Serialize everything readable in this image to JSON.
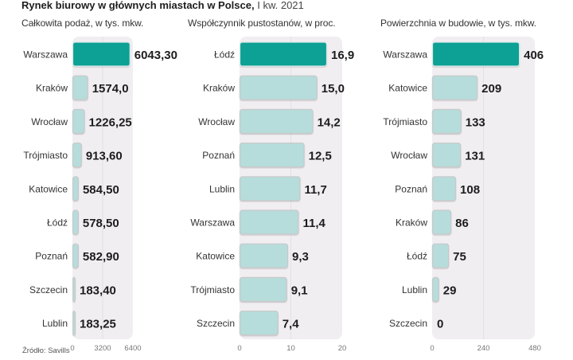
{
  "title": {
    "bold": "Rynek biurowy w głównych miastach w Polsce,",
    "light": "I kw. 2021"
  },
  "source": "Źródło: Savills",
  "colors": {
    "highlight": "#07a095",
    "bar": "#b6dcdb",
    "bar_border": "#c9c9c9",
    "panel": "#f1eef2",
    "grid": "#e3dfe5",
    "value_text": "#1d1d1d",
    "label_text": "#333333",
    "tick_text": "#777777"
  },
  "chart_data": [
    {
      "type": "bar",
      "orientation": "horizontal",
      "title": "Całkowita podaż, w tys. mkw.",
      "categories": [
        "Warszawa",
        "Kraków",
        "Wrocław",
        "Trójmiasto",
        "Katowice",
        "Łódź",
        "Poznań",
        "Szczecin",
        "Lublin"
      ],
      "values": [
        6043.3,
        1574.0,
        1226.25,
        913.6,
        584.5,
        578.5,
        582.9,
        183.4,
        183.25
      ],
      "value_labels": [
        "6043,30",
        "1574,0",
        "1226,25",
        "913,60",
        "584,50",
        "578,50",
        "582,90",
        "183,40",
        "183,25"
      ],
      "highlight_index": 0,
      "xlim": [
        0,
        6400
      ],
      "xticks": [
        0,
        3200,
        6400
      ],
      "xtick_labels": [
        "0",
        "3200",
        "6400"
      ],
      "grid": true,
      "xlabel": "",
      "ylabel": ""
    },
    {
      "type": "bar",
      "orientation": "horizontal",
      "title": "Współczynnik pustostanów, w proc.",
      "categories": [
        "Łódź",
        "Kraków",
        "Wrocław",
        "Poznań",
        "Lublin",
        "Warszawa",
        "Katowice",
        "Trójmiasto",
        "Szczecin"
      ],
      "values": [
        16.9,
        15.0,
        14.2,
        12.5,
        11.7,
        11.4,
        9.3,
        9.1,
        7.4
      ],
      "value_labels": [
        "16,9",
        "15,0",
        "14,2",
        "12,5",
        "11,7",
        "11,4",
        "9,3",
        "9,1",
        "7,4"
      ],
      "highlight_index": 0,
      "xlim": [
        0,
        20
      ],
      "xticks": [
        0,
        10,
        20
      ],
      "xtick_labels": [
        "0",
        "10",
        "20"
      ],
      "grid": true,
      "xlabel": "",
      "ylabel": ""
    },
    {
      "type": "bar",
      "orientation": "horizontal",
      "title": "Powierzchnia w budowie, w tys. mkw.",
      "categories": [
        "Warszawa",
        "Katowice",
        "Trójmiasto",
        "Wrocław",
        "Poznań",
        "Kraków",
        "Łódź",
        "Lublin",
        "Szczecin"
      ],
      "values": [
        406,
        209,
        133,
        131,
        108,
        86,
        75,
        29,
        0
      ],
      "value_labels": [
        "406",
        "209",
        "133",
        "131",
        "108",
        "86",
        "75",
        "29",
        "0"
      ],
      "highlight_index": 0,
      "xlim": [
        0,
        480
      ],
      "xticks": [
        0,
        240,
        480
      ],
      "xtick_labels": [
        "0",
        "240",
        "480"
      ],
      "grid": true,
      "xlabel": "",
      "ylabel": ""
    }
  ]
}
